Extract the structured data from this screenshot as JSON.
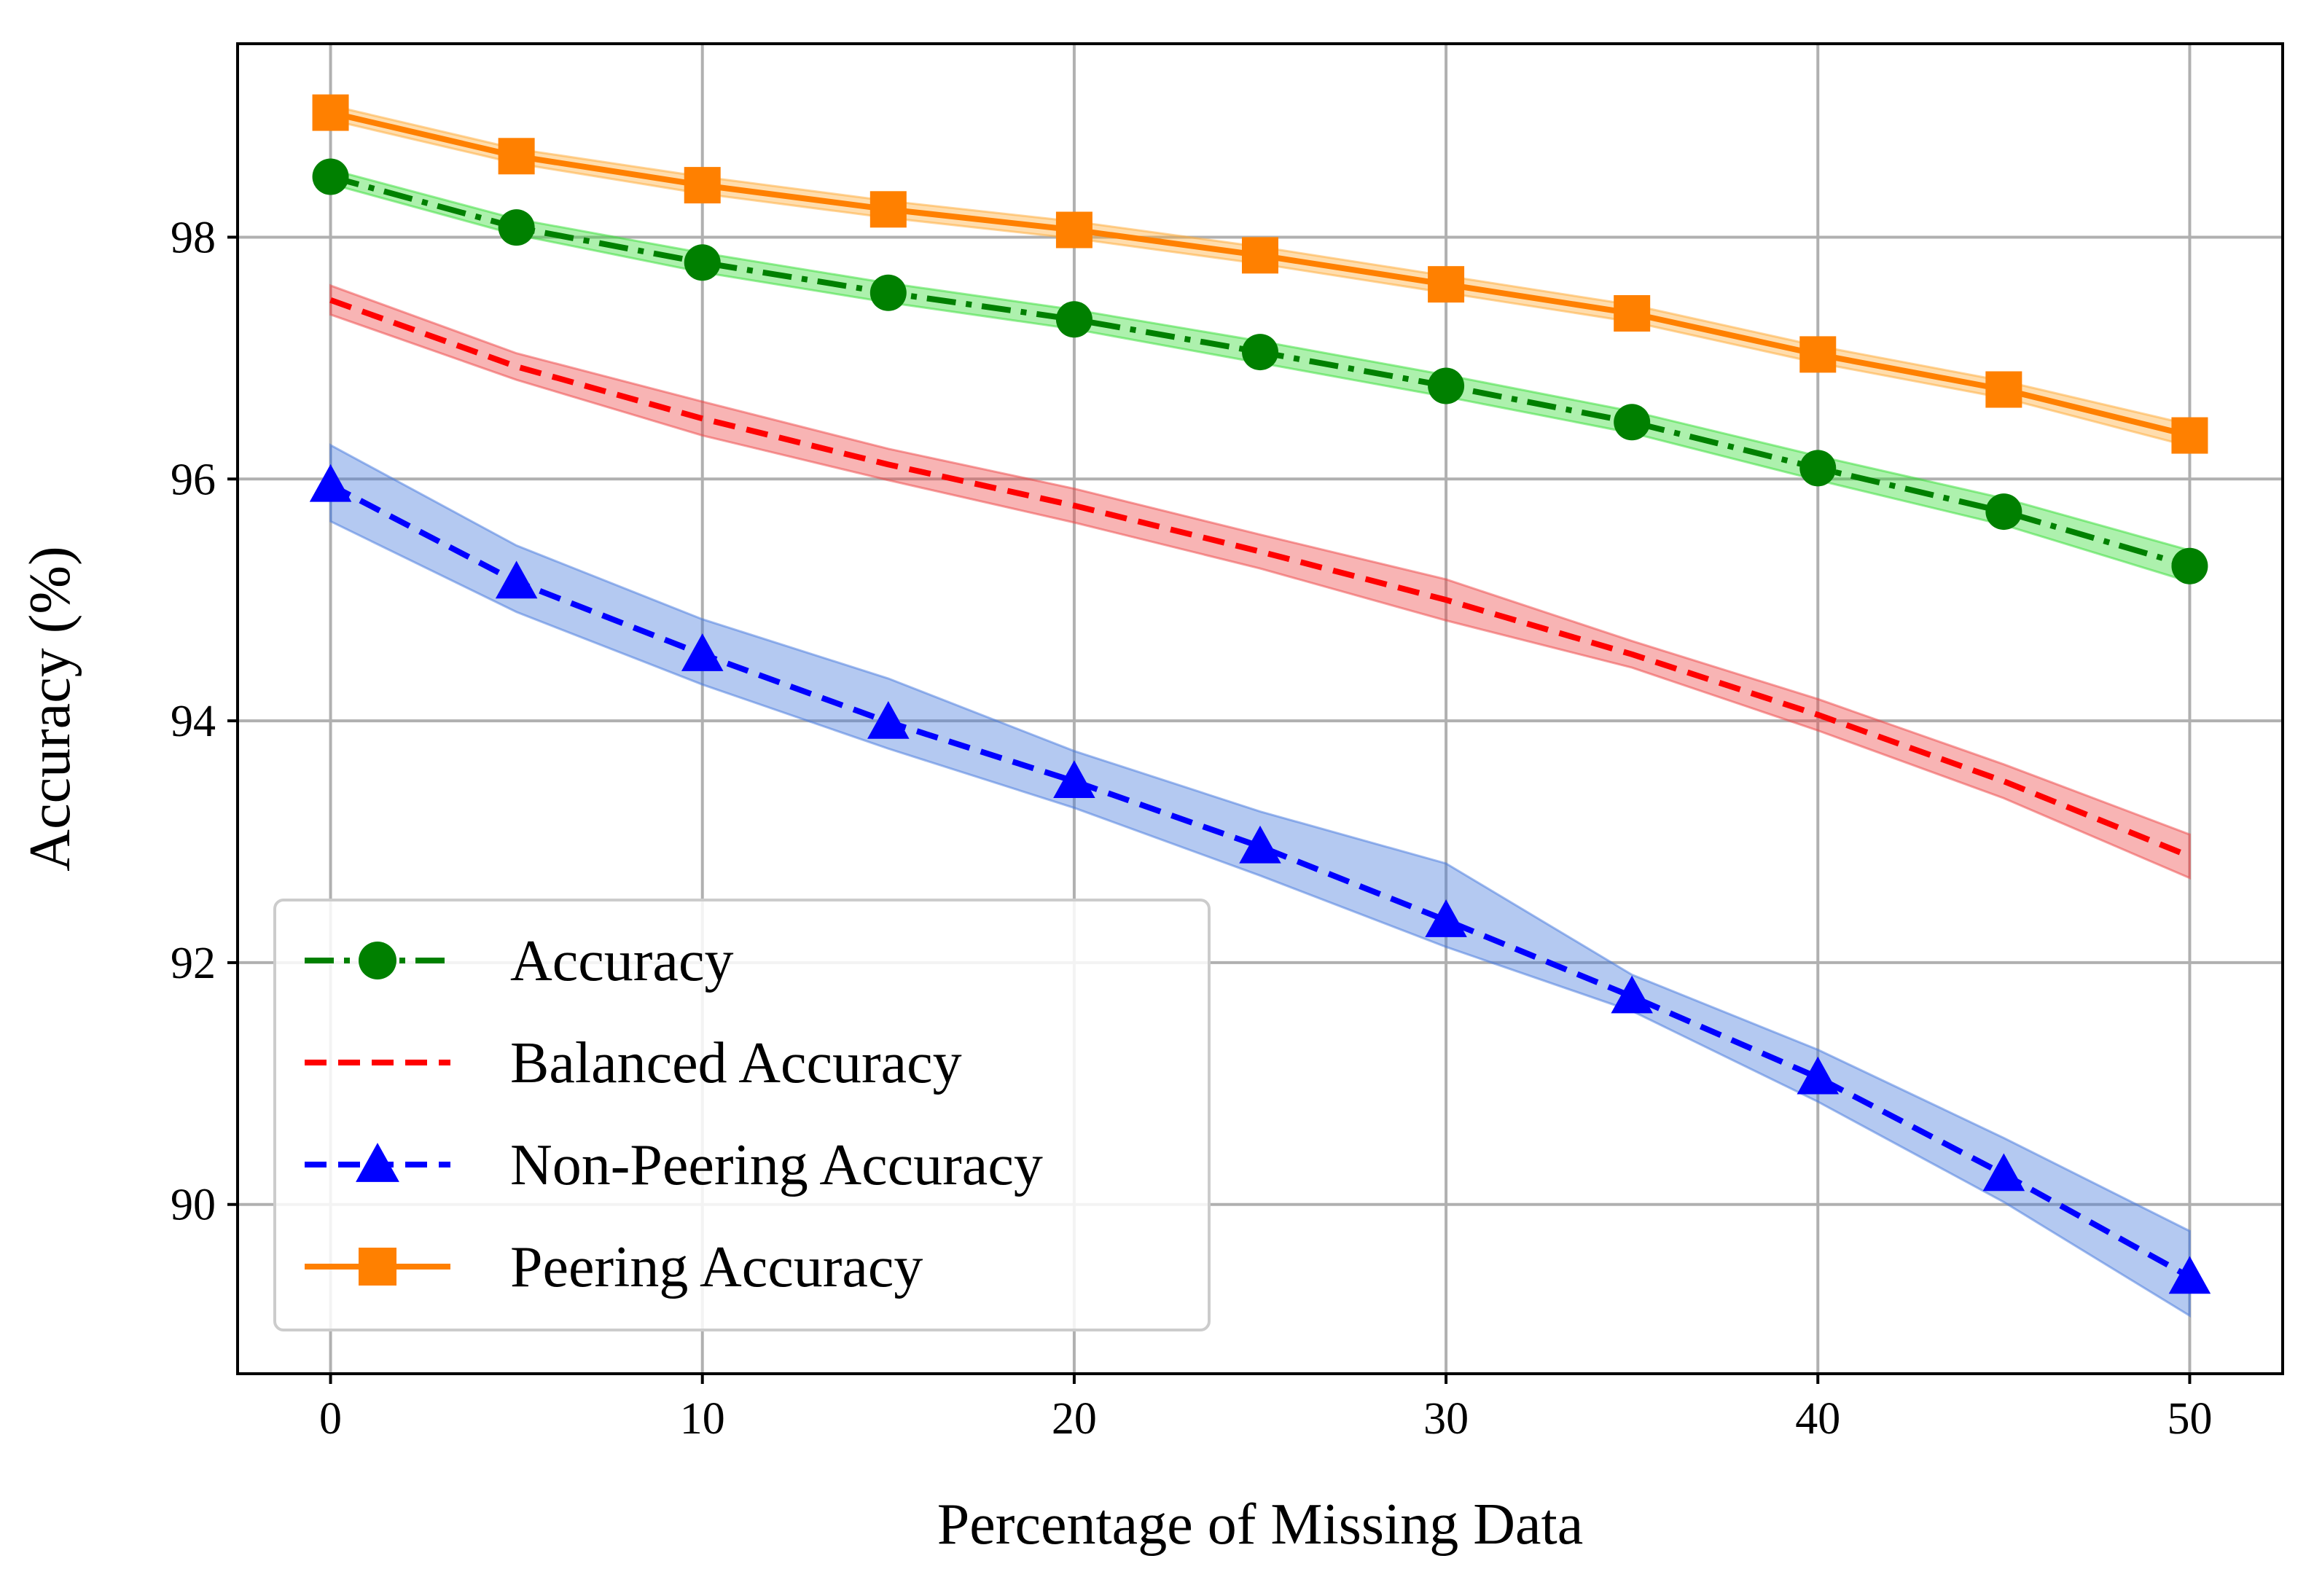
{
  "chart_data": {
    "type": "line",
    "title": "",
    "xlabel": "Percentage of Missing Data",
    "ylabel": "Accuracy (%)",
    "xlim": [
      -2.5,
      52.5
    ],
    "ylim": [
      88.6,
      99.6
    ],
    "xticks": [
      0,
      10,
      20,
      30,
      40,
      50
    ],
    "yticks": [
      90,
      92,
      94,
      96,
      98
    ],
    "x": [
      0,
      5,
      10,
      15,
      20,
      25,
      30,
      35,
      40,
      45,
      50
    ],
    "grid": true,
    "legend_position": "bottom-left",
    "series": [
      {
        "name": "Accuracy",
        "color": "#008000",
        "band_color": "#33dd33",
        "linestyle": "dashdot",
        "marker": "circle",
        "values": [
          98.5,
          98.08,
          97.79,
          97.54,
          97.32,
          97.05,
          96.77,
          96.47,
          96.09,
          95.73,
          95.28
        ],
        "lower": [
          98.44,
          98.02,
          97.71,
          97.46,
          97.24,
          96.96,
          96.68,
          96.38,
          95.99,
          95.62,
          95.15
        ],
        "upper": [
          98.56,
          98.15,
          97.87,
          97.62,
          97.4,
          97.14,
          96.86,
          96.56,
          96.19,
          95.84,
          95.41
        ]
      },
      {
        "name": "Balanced Accuracy",
        "color": "#ff0000",
        "band_color": "#ee4444",
        "linestyle": "dashed",
        "marker": "none",
        "values": [
          97.48,
          96.93,
          96.5,
          96.12,
          95.78,
          95.4,
          95.0,
          94.55,
          94.05,
          93.5,
          92.88
        ],
        "lower": [
          97.36,
          96.82,
          96.36,
          95.99,
          95.64,
          95.26,
          94.83,
          94.44,
          93.92,
          93.36,
          92.7
        ],
        "upper": [
          97.6,
          97.04,
          96.64,
          96.25,
          95.92,
          95.54,
          95.17,
          94.66,
          94.18,
          93.64,
          93.06
        ]
      },
      {
        "name": "Non-Peering Accuracy",
        "color": "#0000ff",
        "band_color": "#4477dd",
        "linestyle": "dashed",
        "marker": "triangle",
        "values": [
          95.95,
          95.15,
          94.55,
          93.99,
          93.5,
          92.96,
          92.35,
          91.72,
          91.05,
          90.25,
          89.4
        ],
        "lower": [
          95.65,
          94.9,
          94.3,
          93.77,
          93.28,
          92.72,
          92.13,
          91.6,
          90.85,
          90.02,
          89.08
        ],
        "upper": [
          96.28,
          95.45,
          94.84,
          94.35,
          93.75,
          93.25,
          92.82,
          91.9,
          91.28,
          90.55,
          89.78
        ]
      },
      {
        "name": "Peering Accuracy",
        "color": "#ff8000",
        "band_color": "#ffaa33",
        "linestyle": "solid",
        "marker": "square",
        "values": [
          99.03,
          98.67,
          98.43,
          98.23,
          98.06,
          97.85,
          97.61,
          97.37,
          97.03,
          96.74,
          96.36
        ],
        "lower": [
          98.97,
          98.61,
          98.36,
          98.16,
          97.99,
          97.78,
          97.54,
          97.3,
          96.96,
          96.67,
          96.27
        ],
        "upper": [
          99.09,
          98.73,
          98.5,
          98.3,
          98.13,
          97.92,
          97.68,
          97.44,
          97.1,
          96.81,
          96.45
        ]
      }
    ]
  }
}
